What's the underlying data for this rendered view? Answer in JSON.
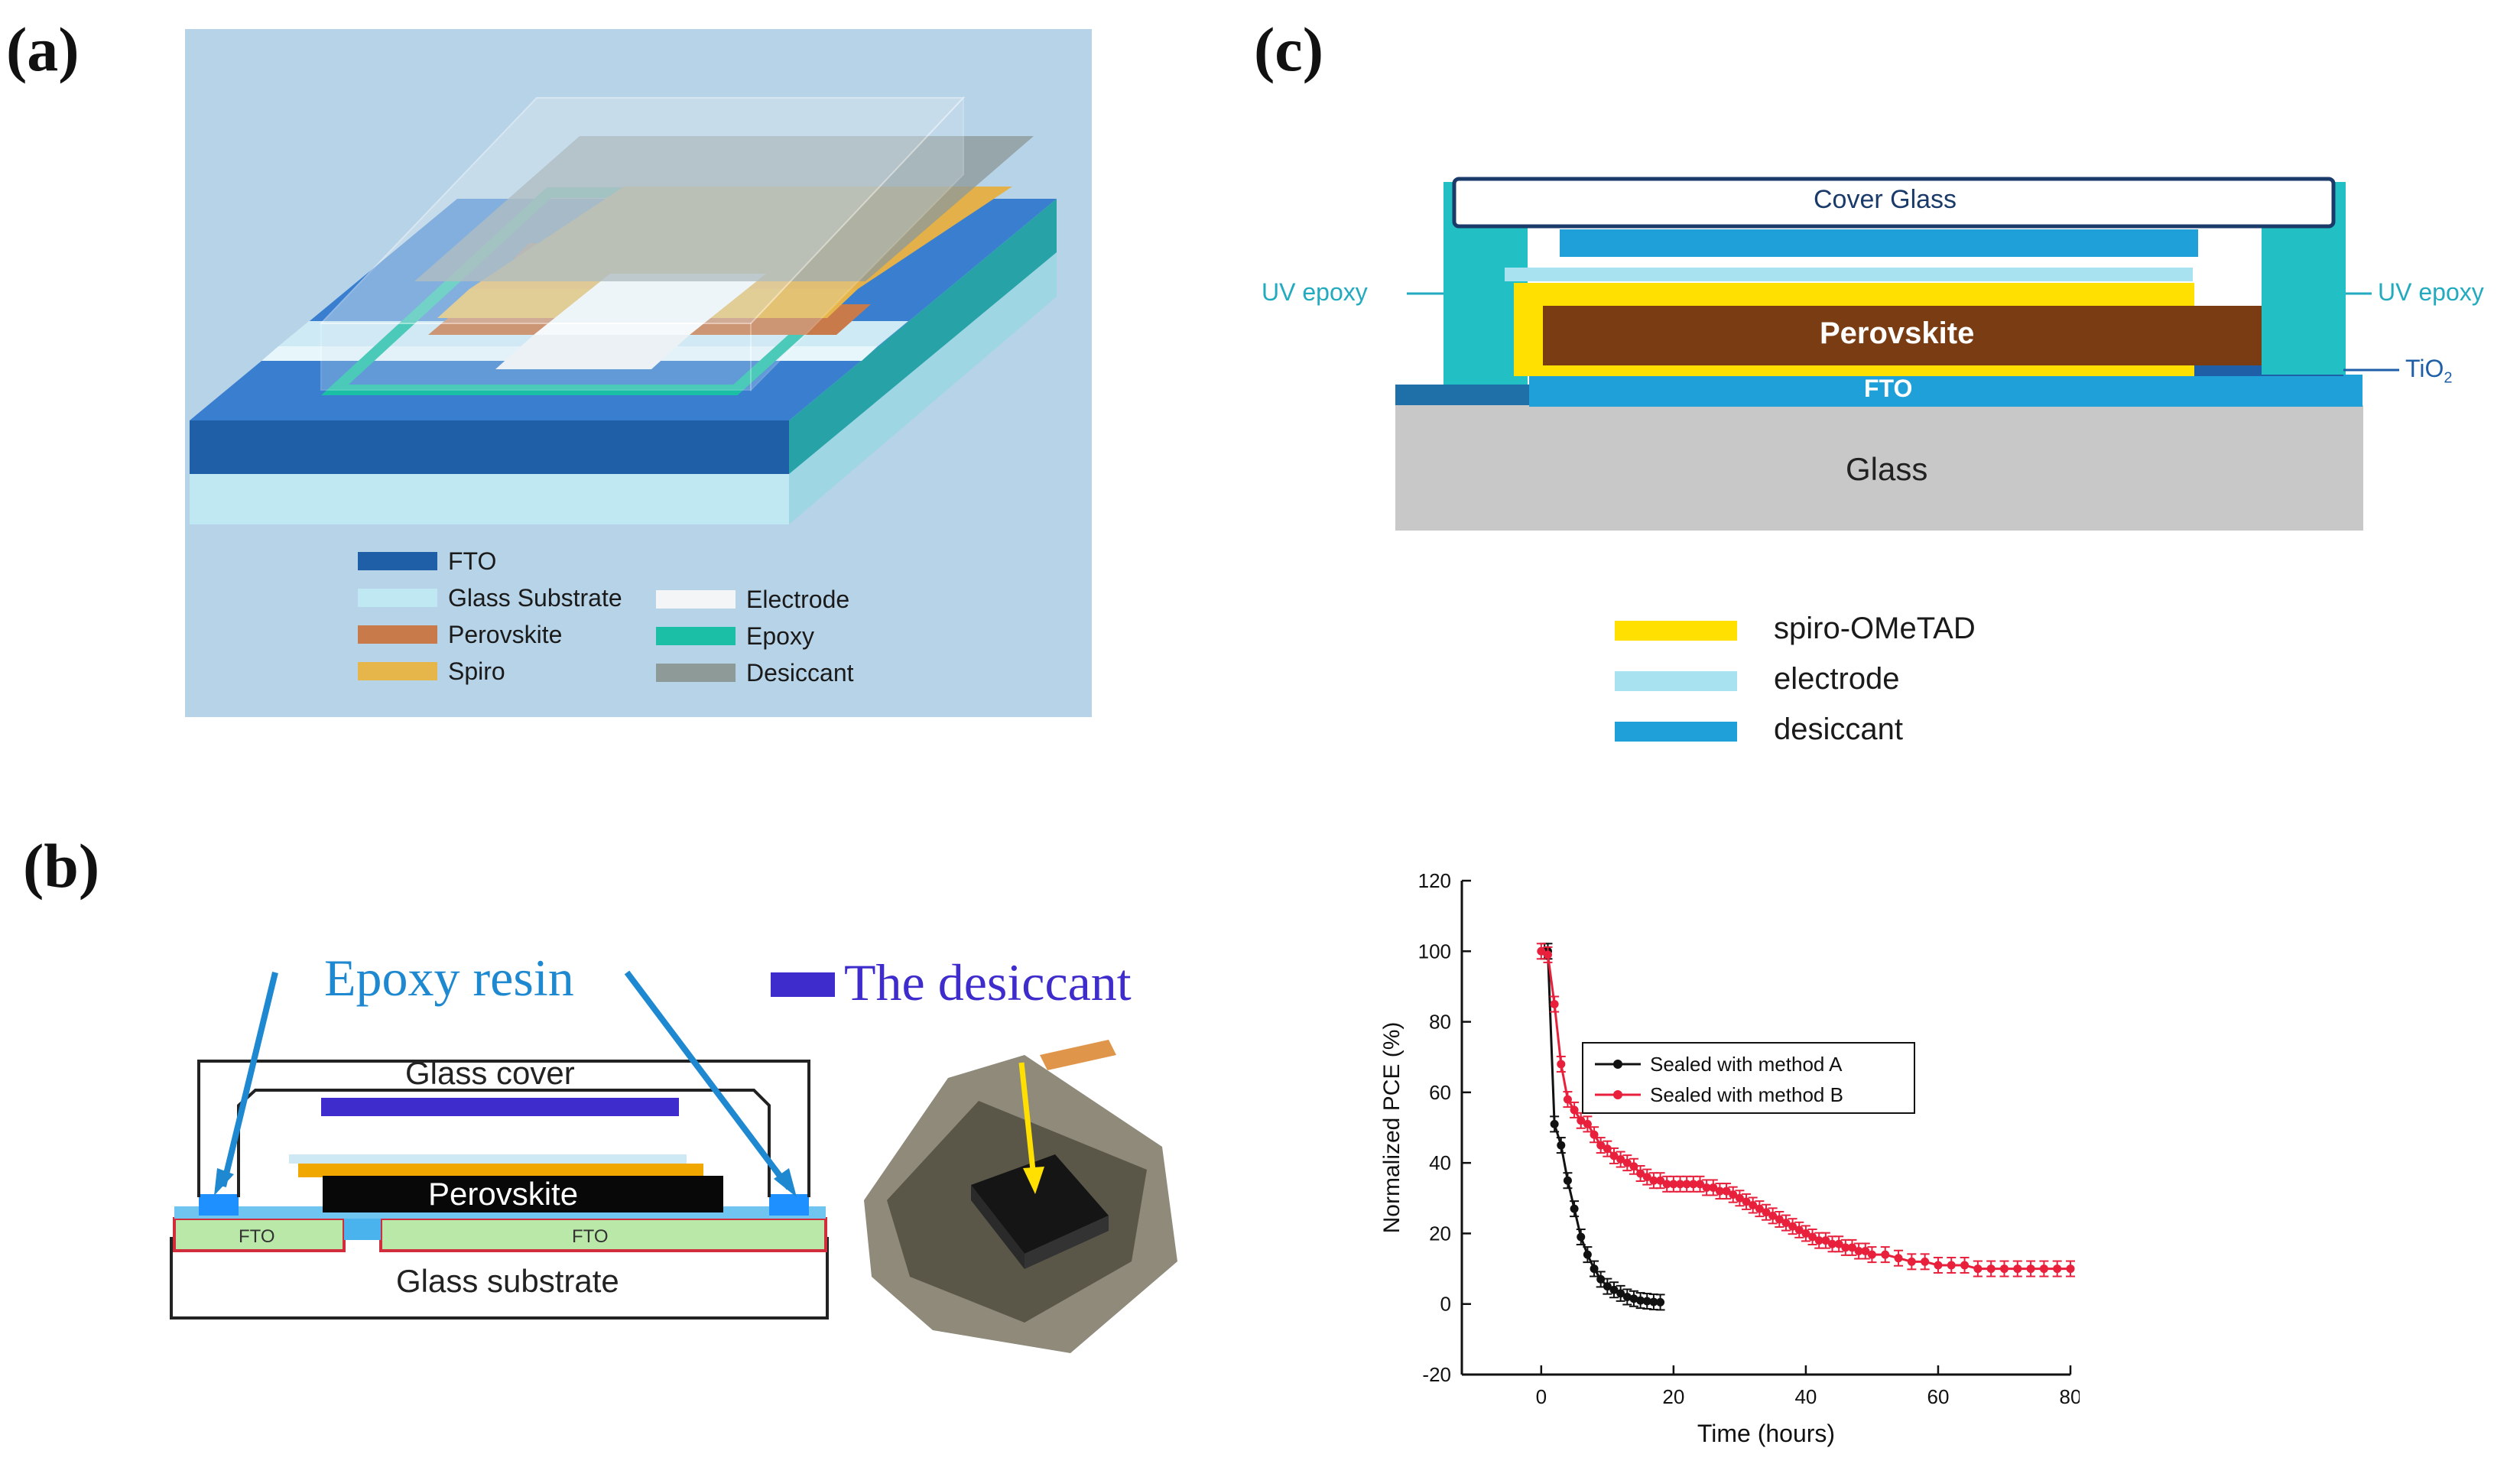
{
  "panel_labels": {
    "a": "(a)",
    "b": "(b)",
    "c": "(c)"
  },
  "panel_a": {
    "legend": [
      {
        "label": "FTO",
        "color": "#1f5fa8"
      },
      {
        "label": "Glass Substrate",
        "color": "#bfe8f3"
      },
      {
        "label": "Perovskite",
        "color": "#c87a4a"
      },
      {
        "label": "Spiro",
        "color": "#e6b64a"
      },
      {
        "label": "Electrode",
        "color": "#f3f5f7"
      },
      {
        "label": "Epoxy",
        "color": "#1bbfa6"
      },
      {
        "label": "Desiccant",
        "color": "#8e9a98"
      }
    ]
  },
  "panel_b": {
    "glass_cover": "Glass cover",
    "perovskite": "Perovskite",
    "fto_left": "FTO",
    "fto_right": "FTO",
    "glass_substrate": "Glass substrate",
    "epoxy_resin": "Epoxy resin",
    "desiccant": "The desiccant"
  },
  "panel_c": {
    "cover_glass": "Cover Glass",
    "uv_epoxy_left": "UV epoxy",
    "uv_epoxy_right": "UV epoxy",
    "perovskite": "Perovskite",
    "fto": "FTO",
    "tio2_main": "TiO",
    "tio2_sub": "2",
    "glass": "Glass",
    "legend": [
      {
        "label": "spiro-OMeTAD",
        "color": "#ffe000"
      },
      {
        "label": "electrode",
        "color": "#a8e2f0"
      },
      {
        "label": "desiccant",
        "color": "#1fa0d8"
      }
    ]
  },
  "chart_data": {
    "type": "line",
    "xlabel": "Time (hours)",
    "ylabel": "Normalized PCE (%)",
    "xlim": [
      -12,
      80
    ],
    "ylim": [
      -20,
      120
    ],
    "xticks": [
      0,
      20,
      40,
      60,
      80
    ],
    "yticks": [
      -20,
      0,
      20,
      40,
      60,
      80,
      100,
      120
    ],
    "legend_position": "upper-middle",
    "series": [
      {
        "name": "Sealed with method A",
        "color": "#111111",
        "x": [
          0.5,
          1,
          2,
          3,
          4,
          5,
          6,
          7,
          8,
          9,
          10,
          11,
          12,
          13,
          14,
          15,
          16,
          17,
          18
        ],
        "y": [
          100,
          100,
          51,
          45,
          35,
          27,
          19,
          14,
          10,
          7,
          5,
          4,
          3,
          2,
          1.5,
          1,
          0.8,
          0.6,
          0.5
        ]
      },
      {
        "name": "Sealed with method B",
        "color": "#e8203c",
        "x": [
          0,
          1,
          2,
          3,
          4,
          5,
          6,
          7,
          8,
          9,
          10,
          11,
          12,
          13,
          14,
          15,
          16,
          17,
          18,
          19,
          20,
          21,
          22,
          23,
          24,
          25,
          26,
          27,
          28,
          29,
          30,
          31,
          32,
          33,
          34,
          35,
          36,
          37,
          38,
          39,
          40,
          41,
          42,
          43,
          44,
          45,
          46,
          47,
          48,
          49,
          50,
          52,
          54,
          56,
          58,
          60,
          62,
          64,
          66,
          68,
          70,
          72,
          74,
          76,
          78,
          80
        ],
        "y": [
          100,
          99,
          85,
          68,
          58,
          55,
          52,
          51,
          48,
          45,
          44,
          42,
          41,
          40,
          39,
          37,
          36,
          35,
          35,
          34,
          34,
          34,
          34,
          34,
          34,
          33,
          33,
          32,
          32,
          31,
          30,
          29,
          28,
          27,
          26,
          25,
          24,
          23,
          22,
          21,
          20,
          19,
          18,
          18,
          17,
          17,
          16,
          16,
          15,
          15,
          14,
          14,
          13,
          12,
          12,
          11,
          11,
          11,
          10,
          10,
          10,
          10,
          10,
          10,
          10,
          10
        ]
      }
    ]
  }
}
